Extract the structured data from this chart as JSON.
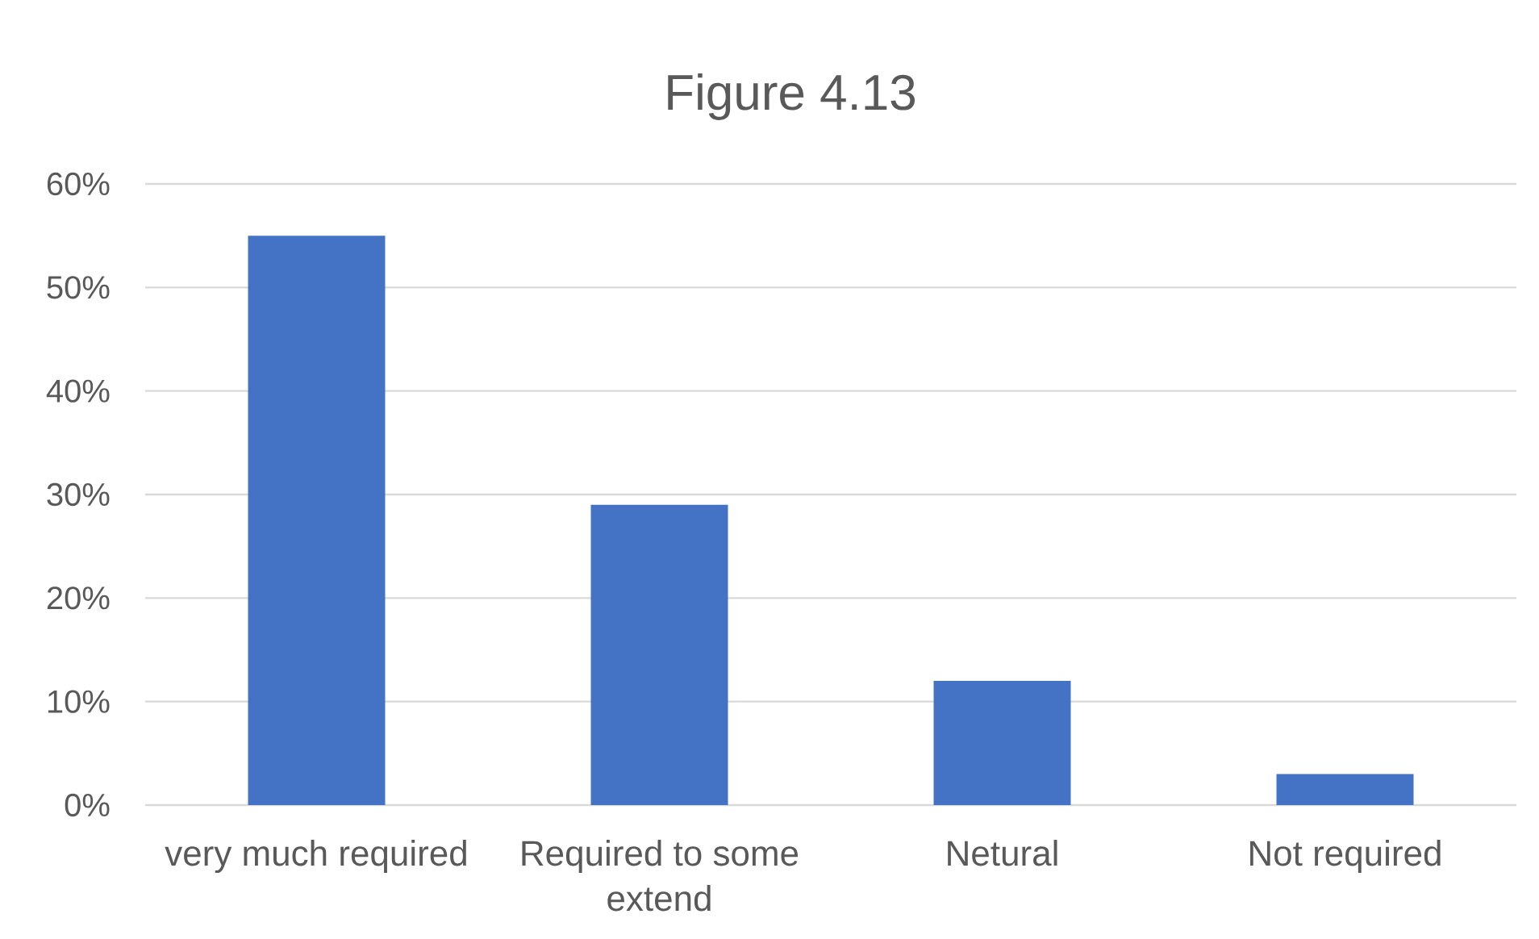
{
  "chart_data": {
    "type": "bar",
    "title": "Figure 4.13",
    "categories": [
      "very much required",
      "Required to some extend",
      "Netural",
      "Not required"
    ],
    "values": [
      55,
      29,
      12,
      3
    ],
    "color": "#4472c4",
    "ylim": [
      0,
      60
    ],
    "yticks": [
      {
        "value": 0,
        "label": "0%"
      },
      {
        "value": 10,
        "label": "10%"
      },
      {
        "value": 20,
        "label": "20%"
      },
      {
        "value": 30,
        "label": "30%"
      },
      {
        "value": 40,
        "label": "40%"
      },
      {
        "value": 50,
        "label": "50%"
      },
      {
        "value": 60,
        "label": "60%"
      }
    ],
    "grid": "y"
  }
}
